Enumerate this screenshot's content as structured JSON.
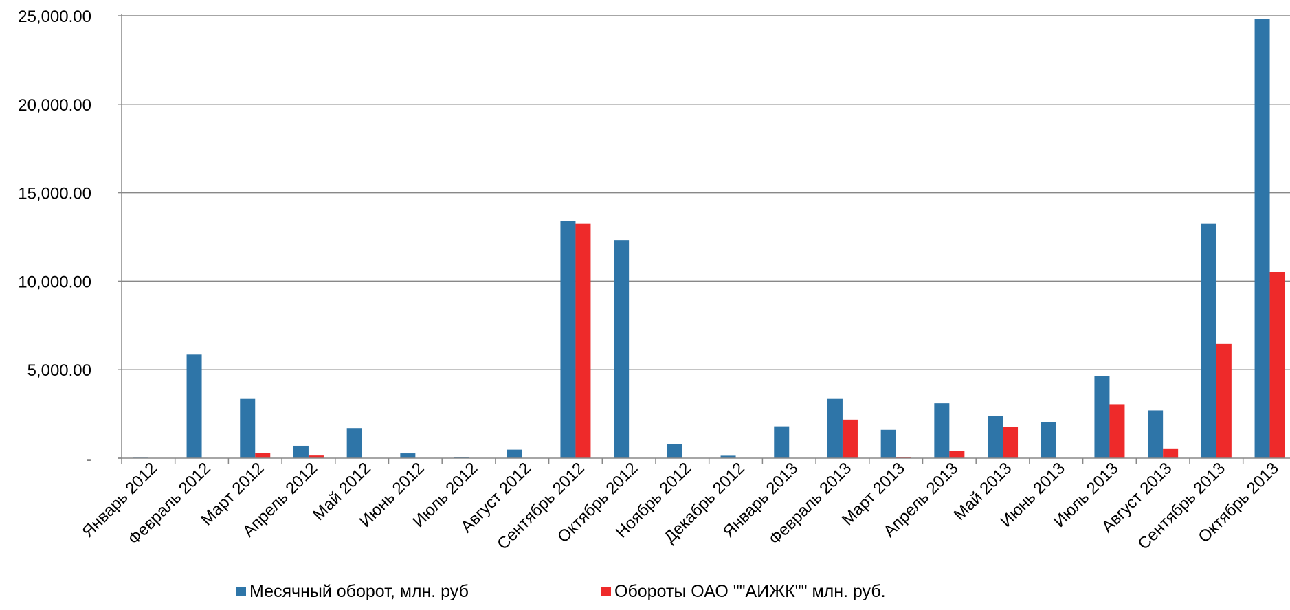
{
  "chart_data": {
    "type": "bar",
    "categories": [
      "Январь 2012",
      "Февраль 2012",
      "Март 2012",
      "Апрель 2012",
      "Май 2012",
      "Июнь 2012",
      "Июль 2012",
      "Август 2012",
      "Сентябрь 2012",
      "Октябрь 2012",
      "Ноябрь 2012",
      "Декабрь 2012",
      "Январь 2013",
      "Февраль 2013",
      "Март 2013",
      "Апрель 2013",
      "Май 2013",
      "Июнь 2013",
      "Июль 2013",
      "Август 2013",
      "Сентябрь 2013",
      "Октябрь 2013"
    ],
    "series": [
      {
        "name": "Месячный оборот, млн. руб",
        "color": "#2e75a8",
        "values": [
          30,
          5850,
          3350,
          700,
          1700,
          270,
          50,
          480,
          13400,
          12300,
          780,
          140,
          1800,
          3350,
          1600,
          3100,
          2380,
          2050,
          4620,
          2700,
          13250,
          24820
        ]
      },
      {
        "name": "Обороты ОАО \"\"АИЖК\"\" млн. руб.",
        "color": "#ee2a2a",
        "values": [
          0,
          0,
          280,
          150,
          0,
          0,
          0,
          0,
          13250,
          0,
          0,
          0,
          0,
          2180,
          70,
          400,
          1750,
          0,
          3050,
          550,
          6450,
          10520
        ]
      }
    ],
    "y_ticks": [
      "-",
      "5,000.00",
      "10,000.00",
      "15,000.00",
      "20,000.00",
      "25,000.00"
    ],
    "ylim": [
      0,
      25000
    ],
    "grid": true,
    "legend_position": "bottom",
    "title": "",
    "xlabel": "",
    "ylabel": ""
  }
}
